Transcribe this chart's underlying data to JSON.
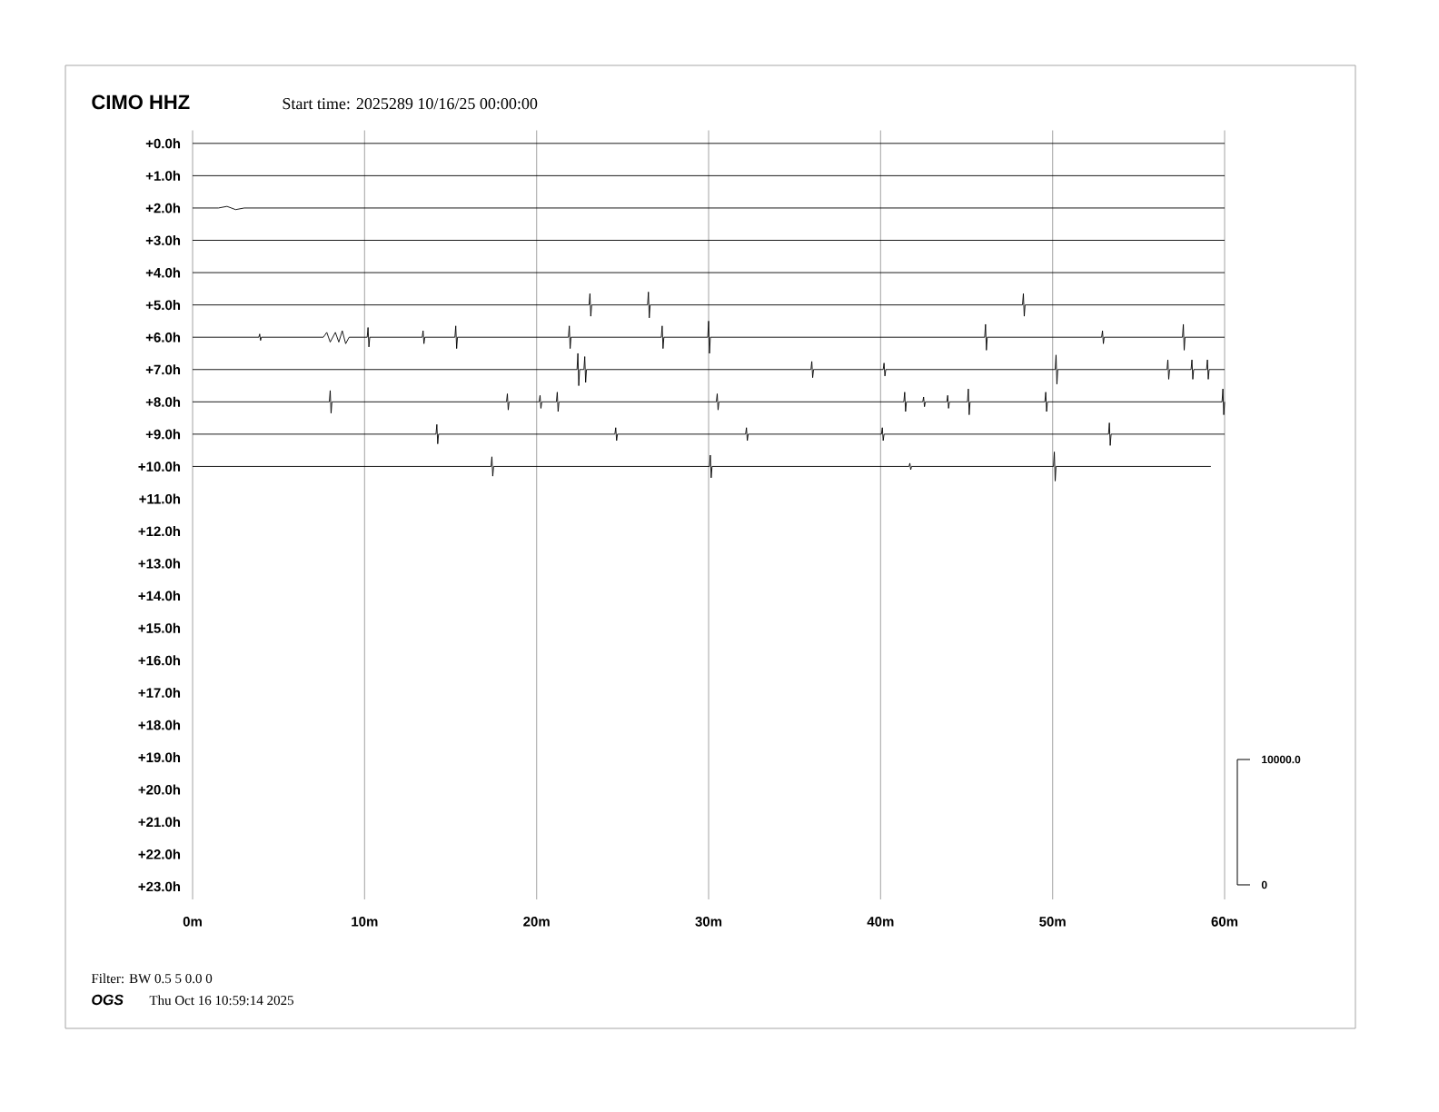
{
  "chart_data": {
    "type": "line",
    "title": "CIMO HHZ",
    "subtitle": "Start time: 2025289 10/16/25 00:00:00",
    "annotations": [
      "Filter: BW 0.5 5 0.0 0",
      "OGS",
      "Thu Oct 16 10:59:14 2025",
      "10000.0",
      "0"
    ],
    "xlim": [
      0,
      60
    ],
    "ylim": [
      -23.4,
      0.4
    ],
    "grid": "x",
    "xticks": [
      {
        "value": 0,
        "label": "0m"
      },
      {
        "value": 10,
        "label": "10m"
      },
      {
        "value": 20,
        "label": "20m"
      },
      {
        "value": 30,
        "label": "30m"
      },
      {
        "value": 40,
        "label": "40m"
      },
      {
        "value": 50,
        "label": "50m"
      },
      {
        "value": 60,
        "label": "60m"
      }
    ],
    "yticks": [
      {
        "value": 0,
        "label": "+0.0h"
      },
      {
        "value": -1,
        "label": "+1.0h"
      },
      {
        "value": -2,
        "label": "+2.0h"
      },
      {
        "value": -3,
        "label": "+3.0h"
      },
      {
        "value": -4,
        "label": "+4.0h"
      },
      {
        "value": -5,
        "label": "+5.0h"
      },
      {
        "value": -6,
        "label": "+6.0h"
      },
      {
        "value": -7,
        "label": "+7.0h"
      },
      {
        "value": -8,
        "label": "+8.0h"
      },
      {
        "value": -9,
        "label": "+9.0h"
      },
      {
        "value": -10,
        "label": "+10.0h"
      },
      {
        "value": -11,
        "label": "+11.0h"
      },
      {
        "value": -12,
        "label": "+12.0h"
      },
      {
        "value": -13,
        "label": "+13.0h"
      },
      {
        "value": -14,
        "label": "+14.0h"
      },
      {
        "value": -15,
        "label": "+15.0h"
      },
      {
        "value": -16,
        "label": "+16.0h"
      },
      {
        "value": -17,
        "label": "+17.0h"
      },
      {
        "value": -18,
        "label": "+18.0h"
      },
      {
        "value": -19,
        "label": "+19.0h"
      },
      {
        "value": -20,
        "label": "+20.0h"
      },
      {
        "value": -21,
        "label": "+21.0h"
      },
      {
        "value": -22,
        "label": "+22.0h"
      },
      {
        "value": -23,
        "label": "+23.0h"
      }
    ],
    "series": [
      {
        "color": "#000000",
        "x": [
          0,
          60
        ],
        "values": [
          0,
          0
        ]
      },
      {
        "color": "#000000",
        "x": [
          0,
          60
        ],
        "values": [
          -1,
          -1
        ]
      },
      {
        "color": "#000000",
        "x": [
          0,
          1.5,
          2.0,
          2.5,
          3.0,
          60
        ],
        "values": [
          -2,
          -2,
          -1.95,
          -2.05,
          -2,
          -2
        ]
      },
      {
        "color": "#000000",
        "x": [
          0,
          60
        ],
        "values": [
          -3,
          -3
        ]
      },
      {
        "color": "#000000",
        "x": [
          0,
          60
        ],
        "values": [
          -4,
          -4
        ]
      },
      {
        "color": "#000000",
        "x": [
          0,
          23.05,
          23.1,
          23.15,
          23.2,
          26.45,
          26.5,
          26.55,
          26.6,
          48.25,
          48.3,
          48.35,
          48.4,
          60
        ],
        "values": [
          -5,
          -5,
          -4.65,
          -5.35,
          -5,
          -5,
          -4.6,
          -5.4,
          -5,
          -5,
          -4.65,
          -5.35,
          -5,
          -5
        ]
      },
      {
        "color": "#000000",
        "x": [
          0,
          3.85,
          3.9,
          3.95,
          4.0,
          7.6,
          7.8,
          8.0,
          8.3,
          8.5,
          8.7,
          8.9,
          9.1,
          10.15,
          10.2,
          10.25,
          10.3,
          13.35,
          13.4,
          13.45,
          13.5,
          15.25,
          15.3,
          15.35,
          15.4,
          21.85,
          21.9,
          21.95,
          22.0,
          27.25,
          27.3,
          27.35,
          27.4,
          29.95,
          30.0,
          30.05,
          30.1,
          46.05,
          46.1,
          46.15,
          46.2,
          52.85,
          52.9,
          52.95,
          53.0,
          57.55,
          57.6,
          57.65,
          57.7,
          60
        ],
        "values": [
          -6,
          -6,
          -5.9,
          -6.1,
          -6,
          -6,
          -5.85,
          -6.15,
          -5.85,
          -6.15,
          -5.8,
          -6.2,
          -6,
          -6,
          -5.7,
          -6.3,
          -6,
          -6,
          -5.8,
          -6.2,
          -6,
          -6,
          -5.65,
          -6.35,
          -6,
          -6,
          -5.65,
          -6.35,
          -6,
          -6,
          -5.65,
          -6.35,
          -6,
          -6,
          -5.5,
          -6.5,
          -6,
          -6,
          -5.6,
          -6.4,
          -6,
          -6,
          -5.8,
          -6.2,
          -6,
          -6,
          -5.6,
          -6.4,
          -6,
          -6
        ]
      },
      {
        "color": "#000000",
        "x": [
          0,
          22.35,
          22.4,
          22.45,
          22.5,
          22.75,
          22.8,
          22.85,
          22.9,
          35.95,
          36.0,
          36.05,
          36.1,
          40.15,
          40.2,
          40.25,
          40.3,
          50.15,
          50.2,
          50.25,
          50.3,
          56.65,
          56.7,
          56.75,
          56.8,
          58.05,
          58.1,
          58.15,
          58.2,
          58.95,
          59.0,
          59.05,
          59.1,
          60
        ],
        "values": [
          -7,
          -7,
          -6.5,
          -7.5,
          -7,
          -7,
          -6.6,
          -7.4,
          -7,
          -7,
          -6.75,
          -7.25,
          -7,
          -7,
          -6.8,
          -7.2,
          -7,
          -7,
          -6.55,
          -7.45,
          -7,
          -7,
          -6.7,
          -7.3,
          -7,
          -7,
          -6.7,
          -7.3,
          -7,
          -7,
          -6.7,
          -7.3,
          -7,
          -7
        ]
      },
      {
        "color": "#000000",
        "x": [
          0,
          7.95,
          8.0,
          8.05,
          8.1,
          18.25,
          18.3,
          18.35,
          18.4,
          20.15,
          20.2,
          20.25,
          20.3,
          21.15,
          21.2,
          21.25,
          21.3,
          30.45,
          30.5,
          30.55,
          30.6,
          41.35,
          41.4,
          41.45,
          41.5,
          42.45,
          42.5,
          42.55,
          42.6,
          43.85,
          43.9,
          43.95,
          44.0,
          45.05,
          45.1,
          45.15,
          45.2,
          49.55,
          49.6,
          49.65,
          49.7,
          59.85,
          59.9,
          59.95,
          60
        ],
        "values": [
          -8,
          -8,
          -7.65,
          -8.35,
          -8,
          -8,
          -7.75,
          -8.25,
          -8,
          -8,
          -7.8,
          -8.2,
          -8,
          -8,
          -7.7,
          -8.3,
          -8,
          -8,
          -7.75,
          -8.25,
          -8,
          -8,
          -7.7,
          -8.3,
          -8,
          -8,
          -7.85,
          -8.15,
          -8,
          -8,
          -7.8,
          -8.2,
          -8,
          -8,
          -7.6,
          -8.4,
          -8,
          -8,
          -7.7,
          -8.3,
          -8,
          -8,
          -7.6,
          -8.4,
          -8
        ]
      },
      {
        "color": "#000000",
        "x": [
          0,
          14.15,
          14.2,
          14.25,
          14.3,
          24.55,
          24.6,
          24.65,
          24.7,
          32.15,
          32.2,
          32.25,
          32.3,
          40.05,
          40.1,
          40.15,
          40.2,
          53.25,
          53.3,
          53.35,
          53.4,
          60
        ],
        "values": [
          -9,
          -9,
          -8.7,
          -9.3,
          -9,
          -9,
          -8.8,
          -9.2,
          -9,
          -9,
          -8.8,
          -9.2,
          -9,
          -9,
          -8.8,
          -9.2,
          -9,
          -9,
          -8.65,
          -9.35,
          -9,
          -9
        ]
      },
      {
        "color": "#000000",
        "x": [
          0,
          17.35,
          17.4,
          17.45,
          17.5,
          30.05,
          30.1,
          30.15,
          30.2,
          41.65,
          41.7,
          41.75,
          41.8,
          50.05,
          50.1,
          50.15,
          50.2,
          59.2
        ],
        "values": [
          -10,
          -10,
          -9.7,
          -10.3,
          -10,
          -10,
          -9.65,
          -10.35,
          -10,
          -10,
          -9.9,
          -10.1,
          -10,
          -10,
          -9.55,
          -10.45,
          -10,
          -10
        ]
      }
    ]
  }
}
